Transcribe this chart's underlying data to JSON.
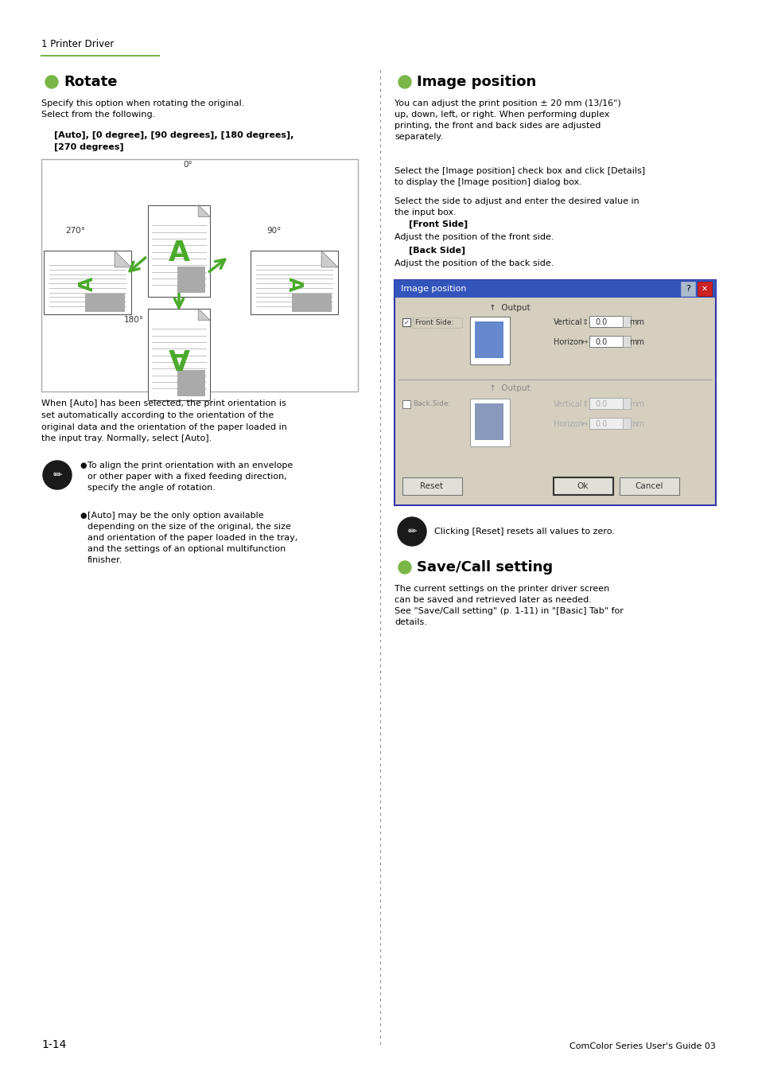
{
  "bg_color": "#ffffff",
  "page_width": 9.54,
  "page_height": 13.51,
  "header_text": "1 Printer Driver",
  "header_line_color": "#7ab648",
  "section1_title": "Rotate",
  "section2_title": "Image position",
  "section3_title": "Save/Call setting",
  "bullet_color": "#7ab648",
  "arrow_color": "#4aaa2a",
  "text_color": "#000000",
  "divider_color": "#888888",
  "dialog_bg": "#d4cfbe",
  "dialog_title_bg": "#3355bb",
  "dialog_border": "#555599",
  "paper_line_color": "#cccccc",
  "paper_gray": "#bbbbbb",
  "paper_curl": "#aaaaaa"
}
